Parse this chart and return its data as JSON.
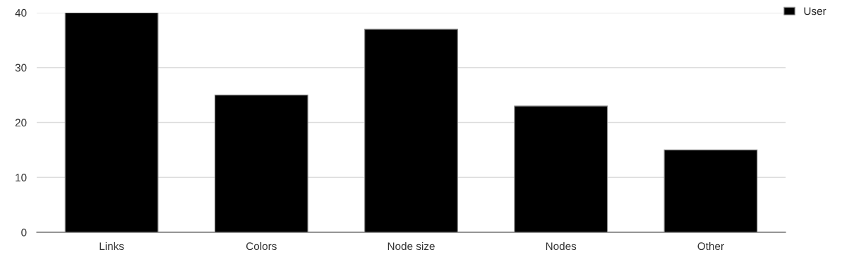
{
  "chart_data": {
    "type": "bar",
    "categories": [
      "Links",
      "Colors",
      "Node size",
      "Nodes",
      "Other"
    ],
    "series": [
      {
        "name": "User",
        "color": "#000000",
        "values": [
          40,
          25,
          37,
          23,
          15
        ]
      }
    ],
    "ylim": [
      0,
      40
    ],
    "yticks": [
      0,
      10,
      20,
      30,
      40
    ],
    "grid": "y",
    "legend": "top right"
  }
}
